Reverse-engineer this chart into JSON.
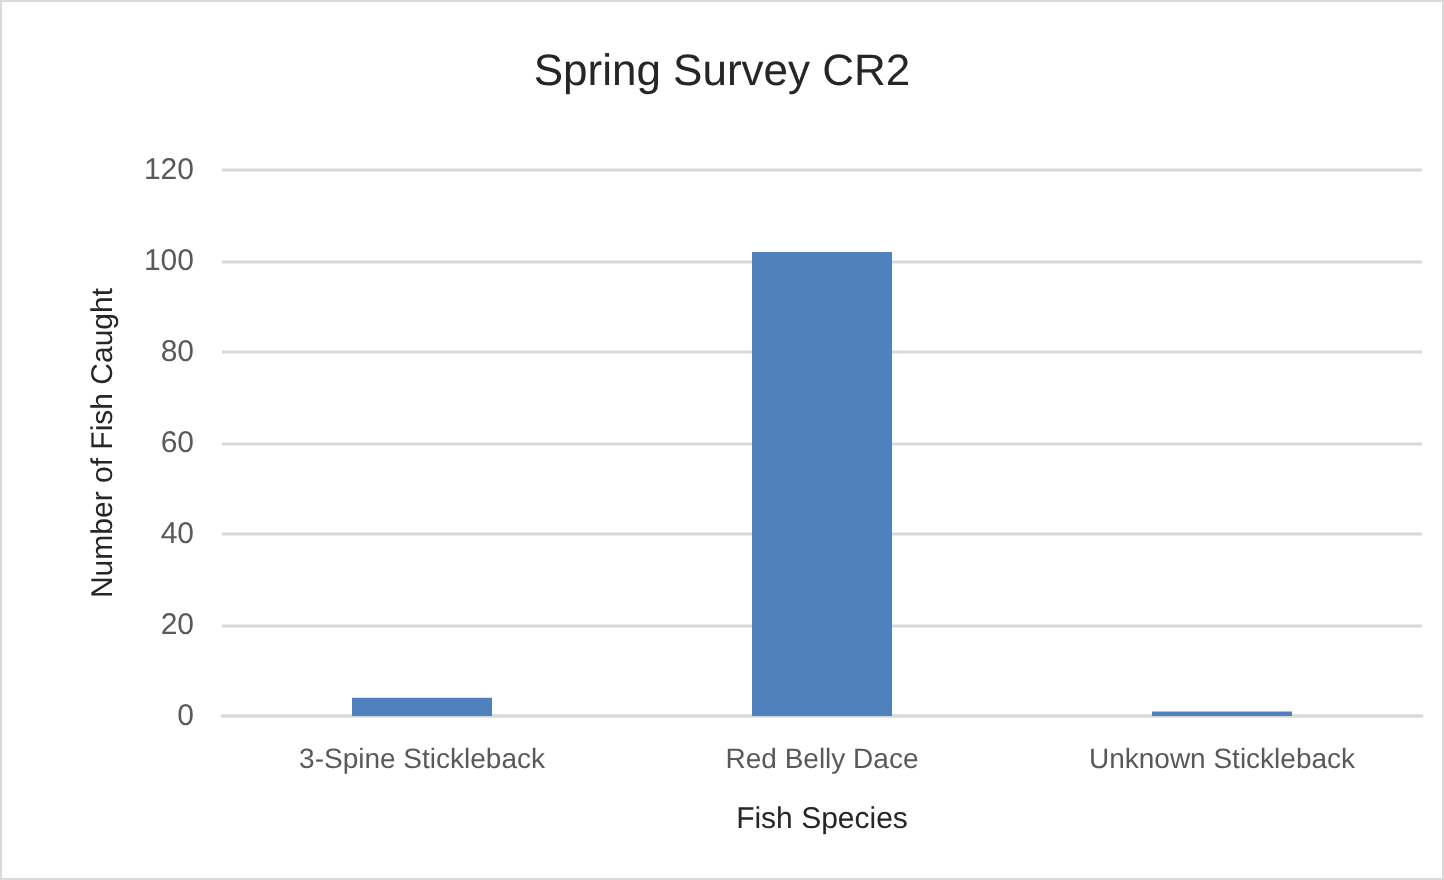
{
  "chart_data": {
    "type": "bar",
    "title": "Spring Survey CR2",
    "xlabel": "Fish Species",
    "ylabel": "Number of Fish Caught",
    "categories": [
      "3-Spine Stickleback",
      "Red Belly Dace",
      "Unknown Stickleback"
    ],
    "values": [
      4,
      102,
      1
    ],
    "color": "#4f81bd",
    "ylim": [
      0,
      120
    ],
    "yticks": [
      0,
      20,
      40,
      60,
      80,
      100,
      120
    ],
    "grid": "y"
  }
}
